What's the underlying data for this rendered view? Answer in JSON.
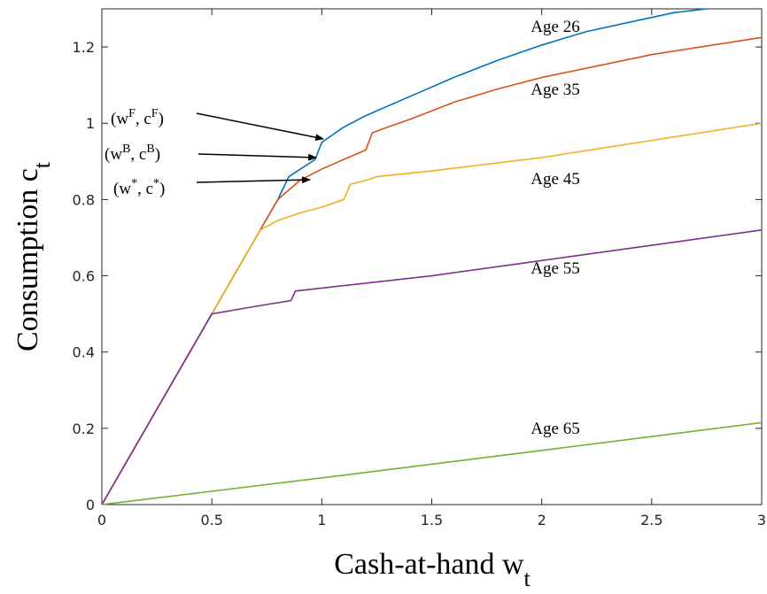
{
  "chart_data": {
    "type": "line",
    "xlabel": "Cash-at-hand w",
    "xlabel_sub": "t",
    "ylabel": "Consumption c",
    "ylabel_sub": "t",
    "xlim": [
      0,
      3
    ],
    "ylim": [
      0,
      1.3
    ],
    "xticks": [
      0,
      0.5,
      1,
      1.5,
      2,
      2.5,
      3
    ],
    "yticks": [
      0,
      0.2,
      0.4,
      0.6,
      0.8,
      1,
      1.2
    ],
    "grid": false,
    "series": [
      {
        "name": "Age 26",
        "color": "#0072BD",
        "x": [
          0,
          0.5,
          0.72,
          0.8,
          0.85,
          0.97,
          1.0,
          1.1,
          1.2,
          1.4,
          1.6,
          1.8,
          2.0,
          2.2,
          2.4,
          2.6,
          2.75
        ],
        "values": [
          0,
          0.5,
          0.72,
          0.8,
          0.86,
          0.905,
          0.95,
          0.99,
          1.02,
          1.07,
          1.12,
          1.165,
          1.205,
          1.24,
          1.265,
          1.29,
          1.3
        ]
      },
      {
        "name": "Age 35",
        "color": "#D95319",
        "x": [
          0,
          0.5,
          0.72,
          0.8,
          0.9,
          1.0,
          1.1,
          1.2,
          1.23,
          1.3,
          1.4,
          1.6,
          1.8,
          2.0,
          2.5,
          3
        ],
        "values": [
          0,
          0.5,
          0.72,
          0.8,
          0.85,
          0.88,
          0.905,
          0.93,
          0.975,
          0.99,
          1.01,
          1.055,
          1.09,
          1.12,
          1.18,
          1.225
        ]
      },
      {
        "name": "Age 45",
        "color": "#EDB120",
        "x": [
          0,
          0.5,
          0.72,
          0.8,
          0.9,
          1.0,
          1.05,
          1.1,
          1.13,
          1.2,
          1.25,
          1.5,
          2.0,
          2.5,
          3
        ],
        "values": [
          0,
          0.5,
          0.72,
          0.745,
          0.765,
          0.78,
          0.79,
          0.8,
          0.84,
          0.85,
          0.86,
          0.875,
          0.91,
          0.955,
          1.0
        ]
      },
      {
        "name": "Age 55",
        "color": "#7E2F8E",
        "x": [
          0,
          0.5,
          0.7,
          0.86,
          0.88,
          1.5,
          2,
          2.5,
          3
        ],
        "values": [
          0,
          0.5,
          0.52,
          0.535,
          0.56,
          0.6,
          0.64,
          0.68,
          0.72
        ]
      },
      {
        "name": "Age 65",
        "color": "#77AC30",
        "x": [
          0,
          1,
          2,
          3
        ],
        "values": [
          0,
          0.07,
          0.142,
          0.215
        ]
      }
    ],
    "annotations": [
      {
        "parts": [
          {
            "text": "(w"
          },
          {
            "text": "F",
            "sup": true
          },
          {
            "text": ", c"
          },
          {
            "text": "F",
            "sup": true
          },
          {
            "text": ")"
          }
        ],
        "xy": [
          1.007,
          0.959
        ]
      },
      {
        "parts": [
          {
            "text": "(w"
          },
          {
            "text": "B",
            "sup": true
          },
          {
            "text": ", c"
          },
          {
            "text": "B",
            "sup": true
          },
          {
            "text": ")"
          }
        ],
        "xy": [
          0.975,
          0.91
        ]
      },
      {
        "parts": [
          {
            "text": "(w"
          },
          {
            "text": "*",
            "sup": true
          },
          {
            "text": ", c"
          },
          {
            "text": "*",
            "sup": true
          },
          {
            "text": ")"
          }
        ],
        "xy": [
          0.946,
          0.852
        ]
      }
    ]
  }
}
